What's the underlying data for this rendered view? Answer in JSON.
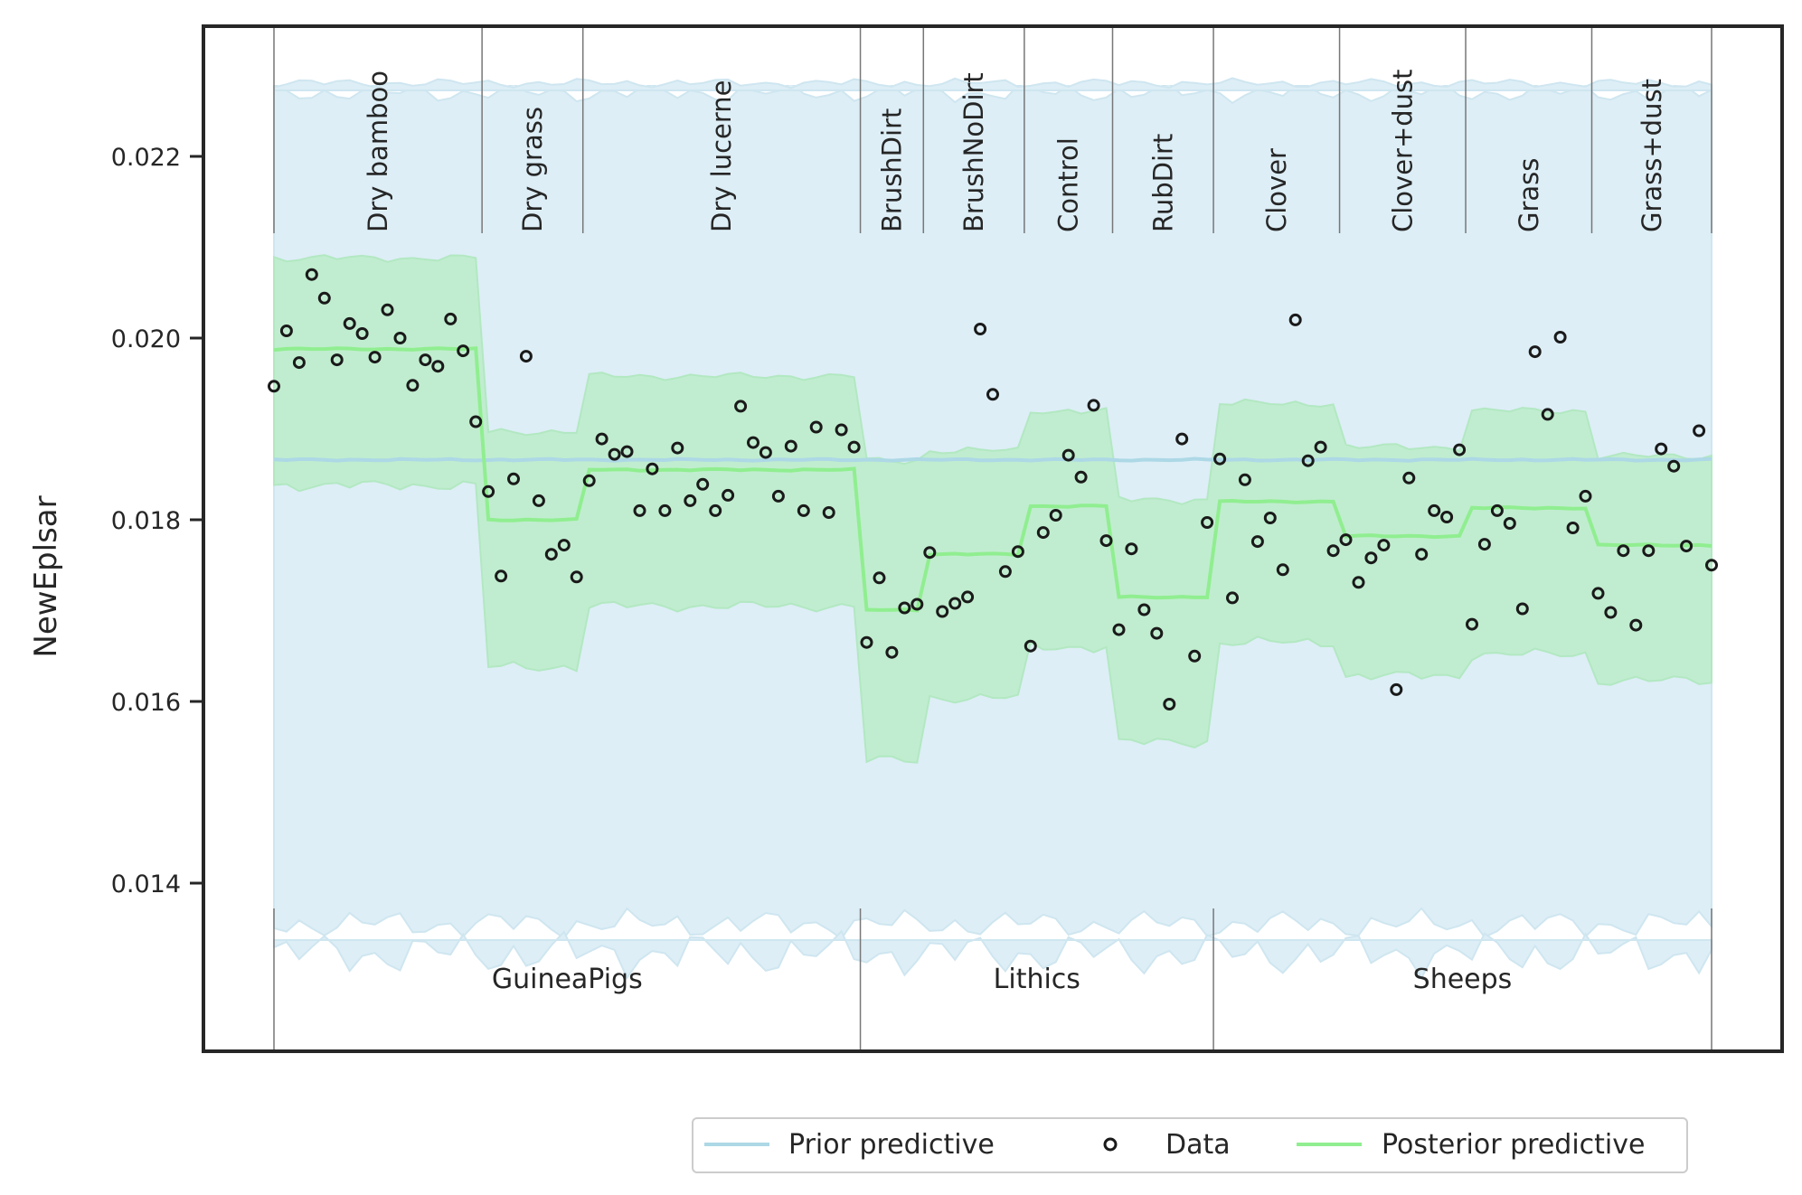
{
  "chart_data": {
    "type": "scatter",
    "title": "",
    "xlabel": "",
    "ylabel": "NewEplsar",
    "ylim": [
      0.0122,
      0.0236
    ],
    "y_ticks": [
      "0.014",
      "0.016",
      "0.018",
      "0.020",
      "0.022"
    ],
    "y_tick_values": [
      0.014,
      0.016,
      0.018,
      0.02,
      0.022
    ],
    "grid": false,
    "legend_position": "bottom-center",
    "colors": {
      "prior": "#add8e6",
      "prior_band": "#ddeef6",
      "posterior": "#90ee90",
      "posterior_band": "#c0edcf",
      "data": "#1a1a1a"
    },
    "groups": [
      {
        "name": "GuineaPigs",
        "conditions": [
          "Dry bamboo",
          "Dry grass",
          "Dry lucerne"
        ]
      },
      {
        "name": "Lithics",
        "conditions": [
          "BrushDirt",
          "BrushNoDirt",
          "Control",
          "RubDirt"
        ]
      },
      {
        "name": "Sheeps",
        "conditions": [
          "Clover",
          "Clover+dust",
          "Grass",
          "Grass+dust"
        ]
      }
    ],
    "conditions": [
      {
        "name": "Dry bamboo",
        "posterior_mean": 0.01988,
        "posterior_lower": 0.01838,
        "posterior_upper": 0.02088,
        "data": [
          0.01947,
          0.02008,
          0.01973,
          0.0207,
          0.02044,
          0.01976,
          0.02016,
          0.02005,
          0.01979,
          0.02031,
          0.02,
          0.01948,
          0.01976,
          0.01969,
          0.02021,
          0.01986,
          0.01908
        ]
      },
      {
        "name": "Dry grass",
        "posterior_mean": 0.018,
        "posterior_lower": 0.01638,
        "posterior_upper": 0.01897,
        "data": [
          0.01831,
          0.01738,
          0.01845,
          0.0198,
          0.01821,
          0.01762,
          0.01772,
          0.01737
        ]
      },
      {
        "name": "Dry lucerne",
        "posterior_mean": 0.01855,
        "posterior_lower": 0.01705,
        "posterior_upper": 0.01958,
        "data": [
          0.01843,
          0.01889,
          0.01872,
          0.01875,
          0.0181,
          0.01856,
          0.0181,
          0.01879,
          0.01821,
          0.01839,
          0.0181,
          0.01827,
          0.01925,
          0.01885,
          0.01874,
          0.01826,
          0.01881,
          0.0181,
          0.01902,
          0.01808,
          0.01899,
          0.0188
        ]
      },
      {
        "name": "BrushDirt",
        "posterior_mean": 0.01701,
        "posterior_lower": 0.01535,
        "posterior_upper": 0.01865,
        "data": [
          0.01665,
          0.01736,
          0.01654,
          0.01703,
          0.01707
        ]
      },
      {
        "name": "BrushNoDirt",
        "posterior_mean": 0.01762,
        "posterior_lower": 0.01604,
        "posterior_upper": 0.01876,
        "data": [
          0.01764,
          0.01699,
          0.01708,
          0.01715,
          0.0201,
          0.01938,
          0.01743,
          0.01765
        ]
      },
      {
        "name": "Control",
        "posterior_mean": 0.01815,
        "posterior_lower": 0.0166,
        "posterior_upper": 0.0192,
        "data": [
          0.01661,
          0.01786,
          0.01805,
          0.01871,
          0.01847,
          0.01926,
          0.01777
        ]
      },
      {
        "name": "RubDirt",
        "posterior_mean": 0.01715,
        "posterior_lower": 0.01555,
        "posterior_upper": 0.01822,
        "data": [
          0.01679,
          0.01768,
          0.01701,
          0.01675,
          0.01597,
          0.01889,
          0.0165,
          0.01797
        ]
      },
      {
        "name": "Clover",
        "posterior_mean": 0.0182,
        "posterior_lower": 0.01665,
        "posterior_upper": 0.01928,
        "data": [
          0.01867,
          0.01714,
          0.01844,
          0.01776,
          0.01802,
          0.01745,
          0.0202,
          0.01865,
          0.0188,
          0.01766
        ]
      },
      {
        "name": "Clover+dust",
        "posterior_mean": 0.01782,
        "posterior_lower": 0.01628,
        "posterior_upper": 0.0188,
        "data": [
          0.01778,
          0.01731,
          0.01758,
          0.01772,
          0.01613,
          0.01846,
          0.01762,
          0.0181,
          0.01803,
          0.01877
        ]
      },
      {
        "name": "Grass",
        "posterior_mean": 0.01813,
        "posterior_lower": 0.01652,
        "posterior_upper": 0.0192,
        "data": [
          0.01685,
          0.01773,
          0.0181,
          0.01796,
          0.01702,
          0.01985,
          0.01916,
          0.02001,
          0.01791,
          0.01826
        ]
      },
      {
        "name": "Grass+dust",
        "posterior_mean": 0.01772,
        "posterior_lower": 0.01623,
        "posterior_upper": 0.0187,
        "data": [
          0.01719,
          0.01698,
          0.01766,
          0.01684,
          0.01766,
          0.01878,
          0.01859,
          0.01771,
          0.01898,
          0.0175
        ]
      }
    ],
    "prior_predictive": {
      "mean": 0.01866,
      "lower": 0.01355,
      "upper": 0.0227
    },
    "legend": [
      "Prior predictive",
      "Data",
      "Posterior predictive"
    ]
  }
}
